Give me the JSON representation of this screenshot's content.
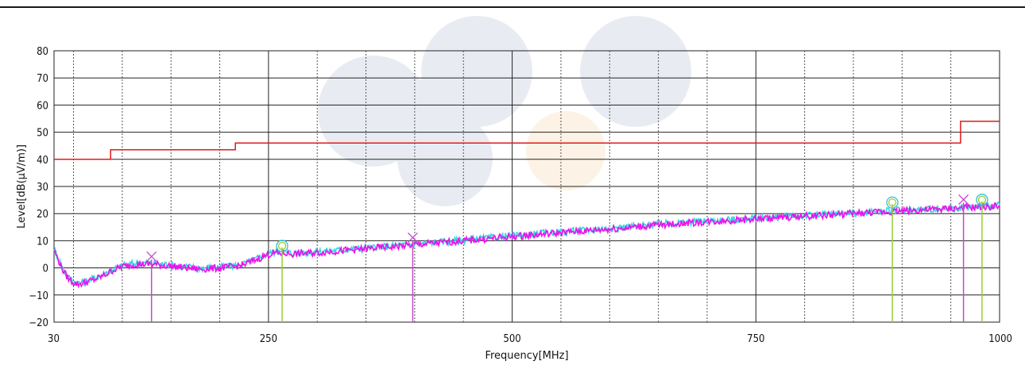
{
  "chart_data": {
    "type": "line",
    "xlabel": "Frequency[MHz]",
    "ylabel": "Level[dB(μV/m)]",
    "xlim": [
      30,
      1000
    ],
    "ylim": [
      -20,
      80
    ],
    "x_tick_labels": [
      {
        "value": 30,
        "label": "30"
      },
      {
        "value": 250,
        "label": "250"
      },
      {
        "value": 500,
        "label": "500"
      },
      {
        "value": 750,
        "label": "750"
      },
      {
        "value": 1000,
        "label": "1000"
      }
    ],
    "x_grid_major": [
      30,
      250,
      500,
      750,
      1000
    ],
    "x_grid_minor": [
      50,
      100,
      150,
      200,
      300,
      350,
      400,
      450,
      550,
      600,
      650,
      700,
      800,
      850,
      900,
      950
    ],
    "y_ticks": [
      -20,
      -10,
      0,
      10,
      20,
      30,
      40,
      50,
      60,
      70,
      80
    ],
    "grid": true,
    "series": [
      {
        "role": "limit",
        "color": "#e11a1a",
        "points": [
          [
            30,
            40
          ],
          [
            88,
            40
          ],
          [
            88,
            43.5
          ],
          [
            216,
            43.5
          ],
          [
            216,
            46
          ],
          [
            960,
            46
          ],
          [
            960,
            54
          ],
          [
            1000,
            54
          ]
        ]
      },
      {
        "role": "measurement-vertical",
        "color": "#30d8e0",
        "points": [
          [
            30,
            7
          ],
          [
            35,
            3
          ],
          [
            40,
            -1
          ],
          [
            45,
            -3.5
          ],
          [
            50,
            -5
          ],
          [
            55,
            -5.5
          ],
          [
            60,
            -5.2
          ],
          [
            70,
            -4
          ],
          [
            80,
            -2.5
          ],
          [
            90,
            -0.5
          ],
          [
            100,
            0.8
          ],
          [
            110,
            1.5
          ],
          [
            125,
            1.8
          ],
          [
            140,
            1.5
          ],
          [
            160,
            0.6
          ],
          [
            180,
            0
          ],
          [
            200,
            0.3
          ],
          [
            215,
            0.8
          ],
          [
            225,
            1.5
          ],
          [
            235,
            3
          ],
          [
            245,
            4.5
          ],
          [
            255,
            5.8
          ],
          [
            265,
            5.8
          ],
          [
            275,
            5.5
          ],
          [
            300,
            6
          ],
          [
            350,
            7.3
          ],
          [
            400,
            8.8
          ],
          [
            450,
            10.2
          ],
          [
            500,
            11.8
          ],
          [
            550,
            13.3
          ],
          [
            600,
            14.6
          ],
          [
            650,
            16.1
          ],
          [
            700,
            17.3
          ],
          [
            750,
            18.3
          ],
          [
            800,
            19.3
          ],
          [
            850,
            20.2
          ],
          [
            900,
            21.2
          ],
          [
            950,
            22
          ],
          [
            1000,
            23
          ]
        ]
      },
      {
        "role": "measurement-horizontal",
        "color": "#ee10ee",
        "points": [
          [
            30,
            6.5
          ],
          [
            35,
            2.5
          ],
          [
            40,
            -1.5
          ],
          [
            45,
            -4
          ],
          [
            50,
            -5.5
          ],
          [
            55,
            -6
          ],
          [
            60,
            -5.6
          ],
          [
            70,
            -4.5
          ],
          [
            80,
            -3
          ],
          [
            90,
            -1
          ],
          [
            100,
            0.5
          ],
          [
            110,
            1.2
          ],
          [
            125,
            1.4
          ],
          [
            140,
            1.1
          ],
          [
            160,
            0.2
          ],
          [
            180,
            -0.5
          ],
          [
            200,
            0
          ],
          [
            215,
            0.5
          ],
          [
            225,
            1.2
          ],
          [
            235,
            2.7
          ],
          [
            245,
            4.2
          ],
          [
            255,
            5.5
          ],
          [
            265,
            5.4
          ],
          [
            275,
            5.1
          ],
          [
            300,
            5.6
          ],
          [
            350,
            7
          ],
          [
            400,
            8.5
          ],
          [
            450,
            10
          ],
          [
            500,
            11.5
          ],
          [
            550,
            13
          ],
          [
            600,
            14.3
          ],
          [
            650,
            15.8
          ],
          [
            700,
            17
          ],
          [
            750,
            18
          ],
          [
            800,
            19
          ],
          [
            850,
            20
          ],
          [
            900,
            21
          ],
          [
            950,
            21.8
          ],
          [
            1000,
            22.8
          ]
        ]
      }
    ],
    "markers": [
      {
        "x": 130,
        "y": 3,
        "symbol": "x",
        "color": "#cc44cc"
      },
      {
        "x": 264,
        "y": 7.5,
        "symbol": "circle",
        "color": "#9acd32"
      },
      {
        "x": 398,
        "y": 10,
        "symbol": "x",
        "color": "#cc44cc"
      },
      {
        "x": 890,
        "y": 23.5,
        "symbol": "circle",
        "color": "#9acd32"
      },
      {
        "x": 963,
        "y": 24,
        "symbol": "x",
        "color": "#cc44cc"
      },
      {
        "x": 982,
        "y": 24.5,
        "symbol": "circle",
        "color": "#9acd32"
      }
    ]
  }
}
